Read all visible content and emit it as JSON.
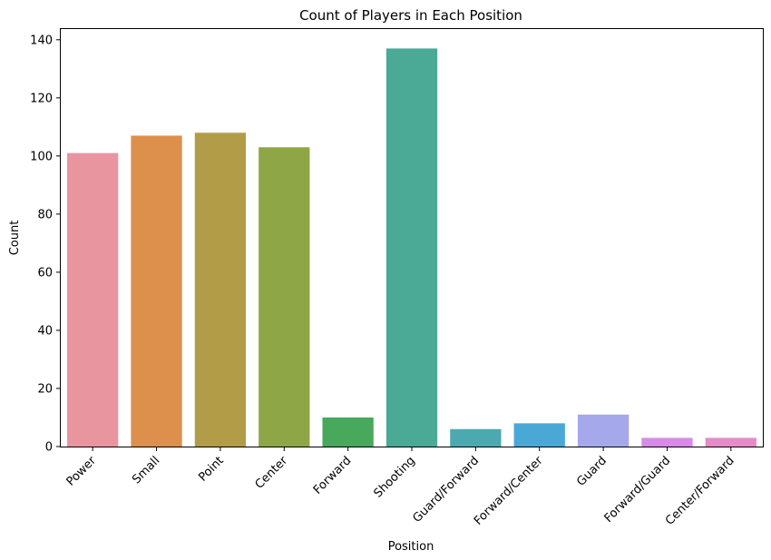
{
  "chart_data": {
    "type": "bar",
    "title": "Count of Players in Each Position",
    "xlabel": "Position",
    "ylabel": "Count",
    "categories": [
      "Power",
      "Small",
      "Point",
      "Center",
      "Forward",
      "Shooting",
      "Guard/Forward",
      "Forward/Center",
      "Guard",
      "Forward/Guard",
      "Center/Forward"
    ],
    "values": [
      101,
      107,
      108,
      103,
      10,
      137,
      6,
      8,
      11,
      3,
      3
    ],
    "colors": [
      "#e8959f",
      "#dd8f4c",
      "#b39c48",
      "#8ea646",
      "#48a85c",
      "#4aaa96",
      "#4ca9b0",
      "#4aa8d6",
      "#a5a8ea",
      "#d98ae8",
      "#e68bc8"
    ],
    "ylim": [
      0,
      144
    ],
    "yticks": [
      0,
      20,
      40,
      60,
      80,
      100,
      120,
      140
    ],
    "grid": false,
    "legend": "none"
  }
}
